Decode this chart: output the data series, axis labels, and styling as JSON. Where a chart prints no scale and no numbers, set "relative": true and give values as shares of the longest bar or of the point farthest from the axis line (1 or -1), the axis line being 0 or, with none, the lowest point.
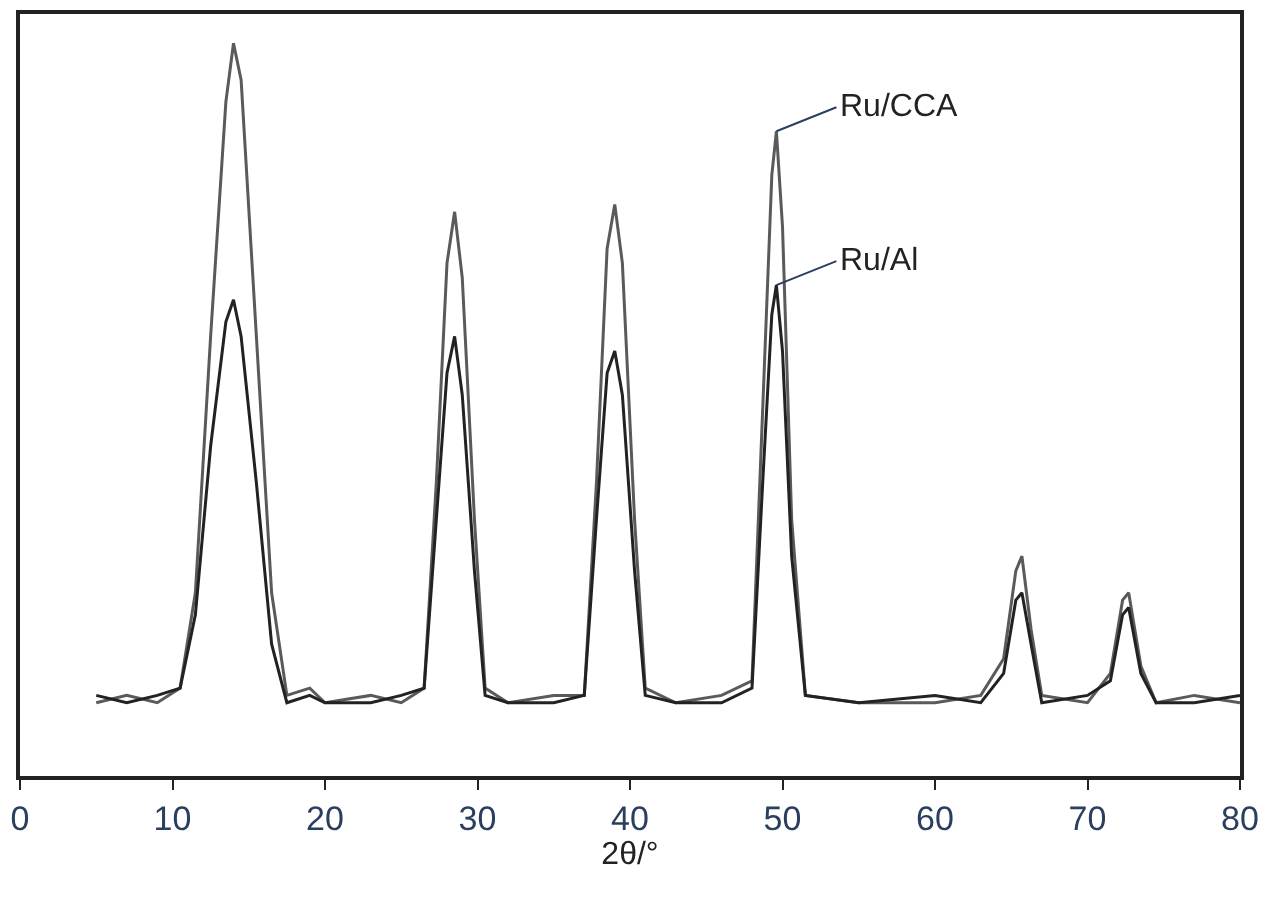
{
  "chart_data": {
    "type": "line",
    "relative": true,
    "xlabel": "2θ/°",
    "xlim": [
      0,
      80
    ],
    "xticks": [
      0,
      10,
      20,
      30,
      40,
      50,
      60,
      70,
      80
    ],
    "line_style": "solid",
    "marker": "none",
    "series": [
      {
        "color": "#5a5a5a",
        "x": [
          5,
          7,
          9,
          10.5,
          11.5,
          12.5,
          13.5,
          14,
          14.5,
          15.5,
          16.5,
          17.5,
          19,
          20,
          23,
          25,
          26.5,
          27.3,
          28,
          28.5,
          29,
          29.8,
          30.5,
          32,
          35,
          37,
          37.8,
          38.5,
          39,
          39.5,
          40.3,
          41,
          43,
          46,
          48,
          48.7,
          49.3,
          49.6,
          50,
          50.6,
          51.5,
          55,
          60,
          63,
          64.5,
          65.3,
          65.7,
          66.3,
          67,
          70,
          71.5,
          72.3,
          72.7,
          73.5,
          74.5,
          77,
          80
        ],
        "values": [
          0.1,
          0.11,
          0.1,
          0.12,
          0.25,
          0.6,
          0.92,
          1.0,
          0.95,
          0.6,
          0.25,
          0.11,
          0.12,
          0.1,
          0.11,
          0.1,
          0.12,
          0.4,
          0.7,
          0.77,
          0.68,
          0.35,
          0.12,
          0.1,
          0.11,
          0.11,
          0.4,
          0.72,
          0.78,
          0.7,
          0.35,
          0.12,
          0.1,
          0.11,
          0.13,
          0.5,
          0.82,
          0.88,
          0.75,
          0.35,
          0.11,
          0.1,
          0.1,
          0.11,
          0.16,
          0.28,
          0.3,
          0.2,
          0.11,
          0.1,
          0.14,
          0.24,
          0.25,
          0.15,
          0.1,
          0.11,
          0.1
        ]
      },
      {
        "color": "#222222",
        "x": [
          5,
          7,
          9,
          10.5,
          11.5,
          12.5,
          13.5,
          14,
          14.5,
          15.5,
          16.5,
          17.5,
          19,
          20,
          23,
          25,
          26.5,
          27.3,
          28,
          28.5,
          29,
          29.8,
          30.5,
          32,
          35,
          37,
          37.8,
          38.5,
          39,
          39.5,
          40.3,
          41,
          43,
          46,
          48,
          48.7,
          49.3,
          49.6,
          50,
          50.6,
          51.5,
          55,
          60,
          63,
          64.5,
          65.3,
          65.7,
          66.3,
          67,
          70,
          71.5,
          72.3,
          72.7,
          73.5,
          74.5,
          77,
          80
        ],
        "values": [
          0.11,
          0.1,
          0.11,
          0.12,
          0.22,
          0.45,
          0.62,
          0.65,
          0.6,
          0.4,
          0.18,
          0.1,
          0.11,
          0.1,
          0.1,
          0.11,
          0.12,
          0.35,
          0.55,
          0.6,
          0.52,
          0.28,
          0.11,
          0.1,
          0.1,
          0.11,
          0.35,
          0.55,
          0.58,
          0.52,
          0.28,
          0.11,
          0.1,
          0.1,
          0.12,
          0.4,
          0.63,
          0.67,
          0.58,
          0.3,
          0.11,
          0.1,
          0.11,
          0.1,
          0.14,
          0.24,
          0.25,
          0.18,
          0.1,
          0.11,
          0.13,
          0.22,
          0.23,
          0.14,
          0.1,
          0.1,
          0.11
        ]
      }
    ],
    "annotations": [
      {
        "text": "Ru/CCA",
        "x": 49.6,
        "y": 0.88
      },
      {
        "text": "Ru/Al",
        "x": 49.6,
        "y": 0.67
      }
    ]
  }
}
